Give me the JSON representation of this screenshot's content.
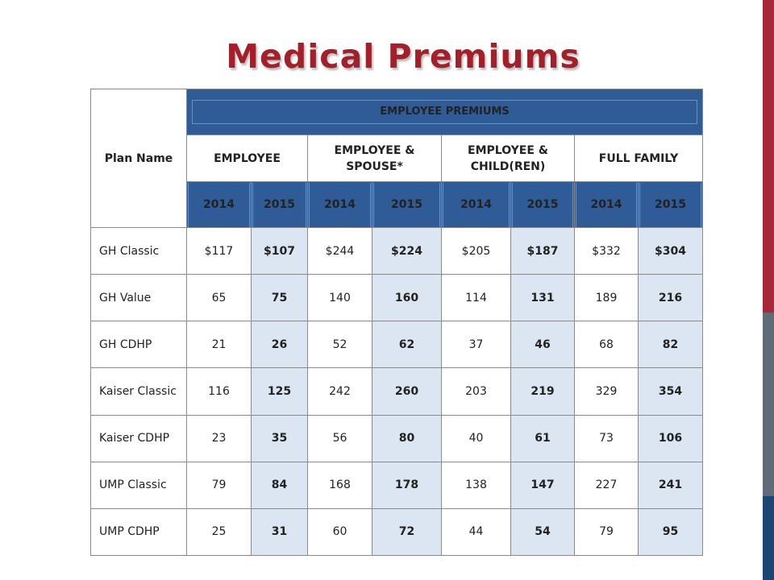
{
  "title": "Medical Premiums",
  "colors": {
    "title": "#a31f2a",
    "header_blue": "#2f5c96",
    "highlight": "#dce6f2",
    "stripe_red": "#a8283a",
    "stripe_gray": "#5f6c78",
    "stripe_navy": "#1c4672"
  },
  "table": {
    "plan_header": "Plan Name",
    "group_header": "EMPLOYEE PREMIUMS",
    "categories": [
      "EMPLOYEE",
      "EMPLOYEE & SPOUSE*",
      "EMPLOYEE & CHILD(REN)",
      "FULL FAMILY"
    ],
    "years": [
      "2014",
      "2015",
      "2014",
      "2015",
      "2014",
      "2015",
      "2014",
      "2015"
    ],
    "rows": [
      {
        "plan": "GH Classic",
        "values": [
          "$117",
          "$107",
          "$244",
          "$224",
          "$205",
          "$187",
          "$332",
          "$304"
        ]
      },
      {
        "plan": "GH Value",
        "values": [
          "65",
          "75",
          "140",
          "160",
          "114",
          "131",
          "189",
          "216"
        ]
      },
      {
        "plan": "GH CDHP",
        "values": [
          "21",
          "26",
          "52",
          "62",
          "37",
          "46",
          "68",
          "82"
        ]
      },
      {
        "plan": "Kaiser Classic",
        "values": [
          "116",
          "125",
          "242",
          "260",
          "203",
          "219",
          "329",
          "354"
        ]
      },
      {
        "plan": "Kaiser CDHP",
        "values": [
          "23",
          "35",
          "56",
          "80",
          "40",
          "61",
          "73",
          "106"
        ]
      },
      {
        "plan": "UMP Classic",
        "values": [
          "79",
          "84",
          "168",
          "178",
          "138",
          "147",
          "227",
          "241"
        ]
      },
      {
        "plan": "UMP CDHP",
        "values": [
          "25",
          "31",
          "60",
          "72",
          "44",
          "54",
          "79",
          "95"
        ]
      }
    ]
  }
}
